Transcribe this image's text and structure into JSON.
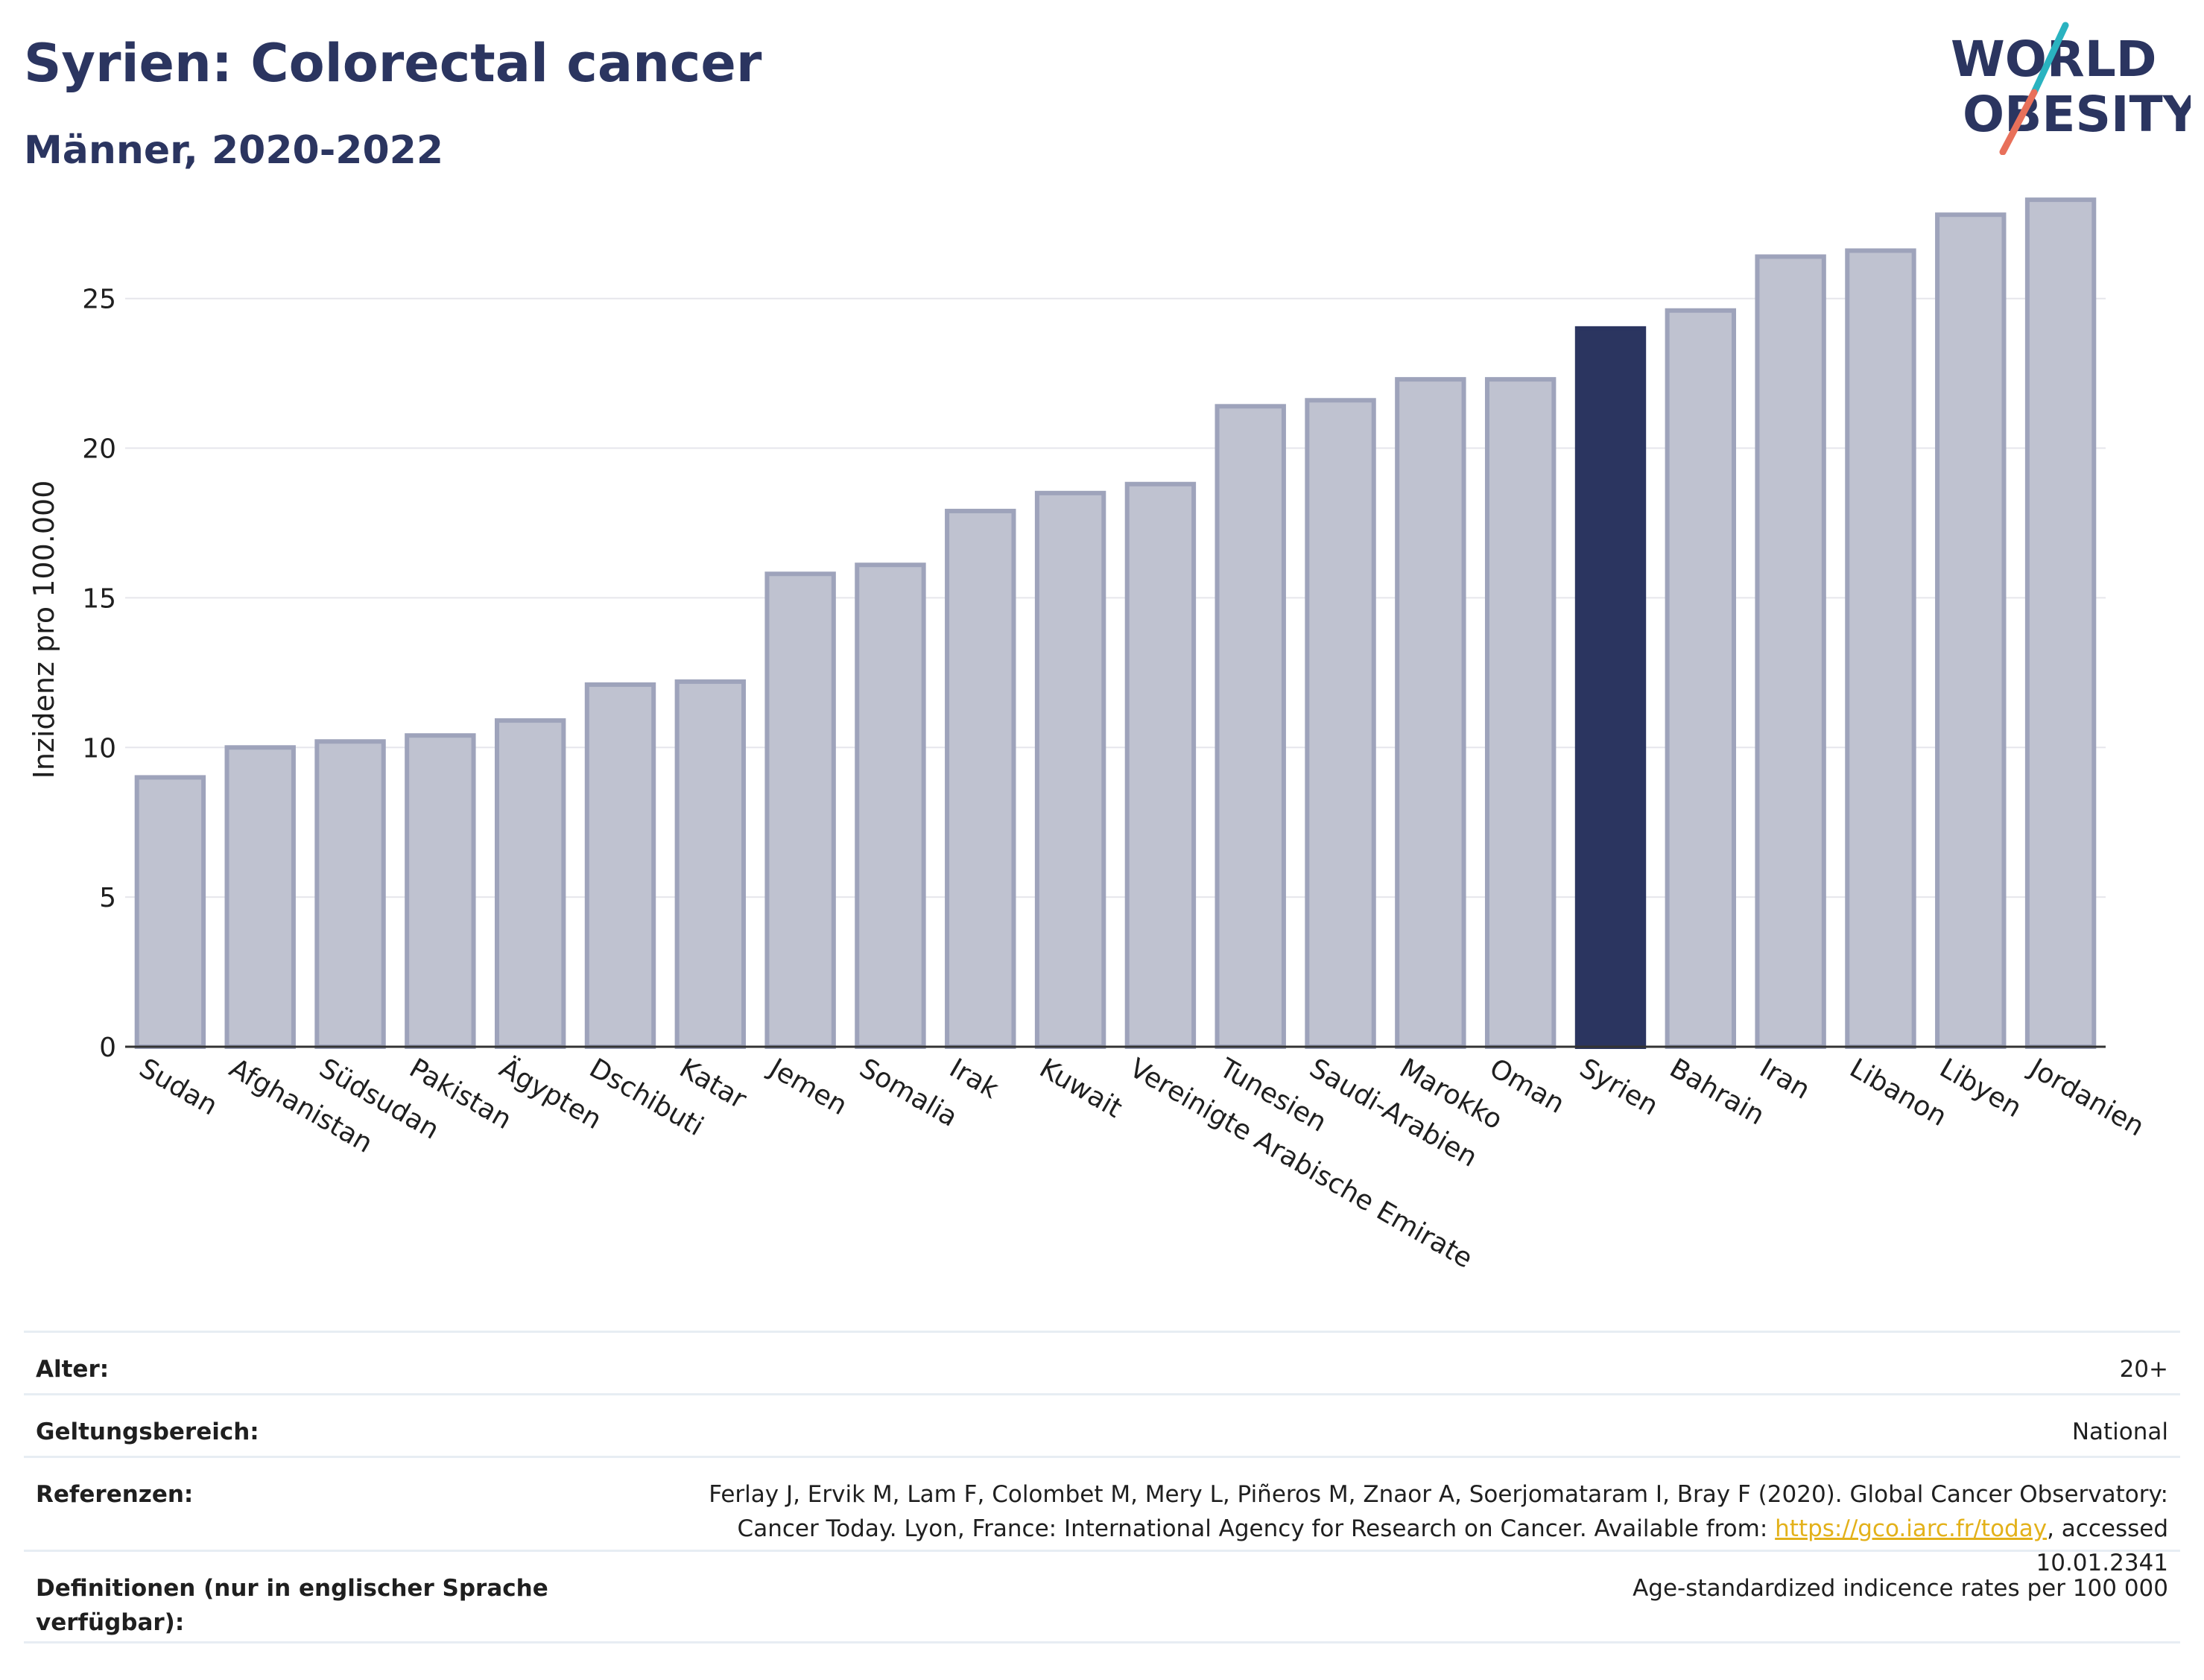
{
  "header": {
    "title": "Syrien: Colorectal cancer",
    "subtitle": "Männer, 2020-2022"
  },
  "logo": {
    "line1": "WORLD",
    "line2": "OBESITY",
    "colors": {
      "text": "#2b3560",
      "slash_teal": "#2ab3c0",
      "slash_coral": "#e8705a"
    }
  },
  "colors": {
    "bar_fill": "#bfc2d0",
    "bar_stroke": "#9ea3bb",
    "highlight": "#2b3560",
    "grid": "#e6e6ec",
    "axis": "#333333"
  },
  "chart_data": {
    "type": "bar",
    "ylabel": "Inzidenz pro 100.000",
    "xlabel": "",
    "ylim": [
      0,
      29
    ],
    "yticks": [
      0,
      5,
      10,
      15,
      20,
      25
    ],
    "grid": true,
    "highlight": "Syrien",
    "categories": [
      "Sudan",
      "Afghanistan",
      "Südsudan",
      "Pakistan",
      "Ägypten",
      "Dschibuti",
      "Katar",
      "Jemen",
      "Somalia",
      "Irak",
      "Kuwait",
      "Vereinigte Arabische Emirate",
      "Tunesien",
      "Saudi-Arabien",
      "Marokko",
      "Oman",
      "Syrien",
      "Bahrain",
      "Iran",
      "Libanon",
      "Libyen",
      "Jordanien"
    ],
    "values": [
      9.0,
      10.0,
      10.2,
      10.4,
      10.9,
      12.1,
      12.2,
      15.8,
      16.1,
      17.9,
      18.5,
      18.8,
      21.4,
      21.6,
      22.3,
      22.3,
      24.0,
      24.6,
      26.4,
      26.6,
      27.8,
      28.3
    ]
  },
  "meta": {
    "alter_label": "Alter:",
    "alter_value": "20+",
    "scope_label": "Geltungsbereich:",
    "scope_value": "National",
    "refs_label": "Referenzen:",
    "refs_text_1": "Ferlay J, Ervik M, Lam F, Colombet M, Mery L, Piñeros M, Znaor A, Soerjomataram I, Bray F (2020). Global Cancer Observatory: Cancer Today. Lyon, France: International Agency for Research on Cancer. Available from: ",
    "refs_link": "https://gco.iarc.fr/today",
    "refs_text_2": ", accessed 10.01.2341",
    "defs_label": "Definitionen (nur in englischer Sprache verfügbar):",
    "defs_value": "Age-standardized indicence rates per 100 000"
  }
}
